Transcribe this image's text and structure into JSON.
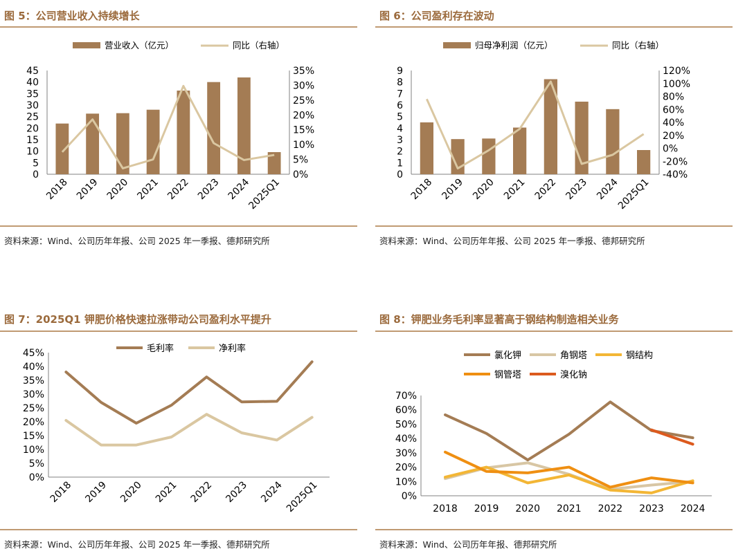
{
  "colors": {
    "title": "#9b6a3c",
    "rule": "#c09a72",
    "bar": "#a47c54",
    "line_light": "#dac7a1",
    "brown_line": "#a47c54",
    "angle_steel": "#d8c6a4",
    "steel_struct": "#f3b635",
    "steel_pipe": "#ef8f12",
    "bromide": "#dc5a1e"
  },
  "charts": [
    {
      "title": "图 5：公司营业收入持续增长",
      "source": "资料来源：Wind、公司历年年报、公司 2025 年一季报、德邦研究所",
      "chart_data": {
        "type": "bar",
        "categories": [
          "2018",
          "2019",
          "2020",
          "2021",
          "2022",
          "2023",
          "2024",
          "2025Q1"
        ],
        "bar_series": {
          "name": "营业收入（亿元）",
          "values": [
            22,
            26.3,
            26.5,
            28,
            36.3,
            40,
            42,
            9.6
          ]
        },
        "line_series": {
          "name": "同比（右轴）",
          "values": [
            7.5,
            18.5,
            2,
            5,
            29.8,
            10.5,
            4.8,
            6.5
          ]
        },
        "y_left": {
          "min": 0,
          "max": 45,
          "ticks": [
            "0",
            "5",
            "10",
            "15",
            "20",
            "25",
            "30",
            "35",
            "40",
            "45"
          ]
        },
        "y_right": {
          "min": 0,
          "max": 35,
          "ticks": [
            "0%",
            "5%",
            "10%",
            "15%",
            "20%",
            "25%",
            "30%",
            "35%"
          ]
        }
      }
    },
    {
      "title": "图 6：公司盈利存在波动",
      "source": "资料来源：Wind、公司历年年报、公司 2025 年一季报、德邦研究所",
      "chart_data": {
        "type": "bar",
        "categories": [
          "2018",
          "2019",
          "2020",
          "2021",
          "2022",
          "2023",
          "2024",
          "2025Q1"
        ],
        "bar_series": {
          "name": "归母净利润（亿元）",
          "values": [
            4.5,
            3.05,
            3.1,
            4.05,
            8.25,
            6.3,
            5.65,
            2.1
          ]
        },
        "line_series": {
          "name": "同比（右轴）",
          "values": [
            76,
            -31,
            -3,
            30,
            103,
            -24,
            -10,
            22
          ]
        },
        "y_left": {
          "min": 0,
          "max": 9,
          "ticks": [
            "0",
            "1",
            "2",
            "3",
            "4",
            "5",
            "6",
            "7",
            "8",
            "9"
          ]
        },
        "y_right": {
          "min": -40,
          "max": 120,
          "ticks": [
            "-40%",
            "-20%",
            "0%",
            "20%",
            "40%",
            "60%",
            "80%",
            "100%",
            "120%"
          ]
        }
      }
    },
    {
      "title": "图 7：2025Q1 钾肥价格快速拉涨带动公司盈利水平提升",
      "source": "资料来源：Wind、公司历年年报、公司 2025 年一季报、德邦研究所",
      "chart_data": {
        "type": "line",
        "categories": [
          "2018",
          "2019",
          "2020",
          "2021",
          "2022",
          "2023",
          "2024",
          "2025Q1"
        ],
        "series": [
          {
            "name": "毛利率",
            "values": [
              38,
              27,
              19.5,
              26,
              36.2,
              27.2,
              27.4,
              41.7
            ]
          },
          {
            "name": "净利率",
            "values": [
              20.5,
              11.6,
              11.6,
              14.5,
              22.7,
              16,
              13.4,
              21.6
            ]
          }
        ],
        "y": {
          "min": 0,
          "max": 45,
          "ticks": [
            "0%",
            "5%",
            "10%",
            "15%",
            "20%",
            "25%",
            "30%",
            "35%",
            "40%",
            "45%"
          ]
        }
      }
    },
    {
      "title": "图 8：钾肥业务毛利率显著高于钢结构制造相关业务",
      "source": "资料来源：Wind、公司历年年报、德邦研究所",
      "chart_data": {
        "type": "line",
        "categories": [
          "2018",
          "2019",
          "2020",
          "2021",
          "2022",
          "2023",
          "2024"
        ],
        "series": [
          {
            "name": "氯化钾",
            "values": [
              56.5,
              43.5,
              25,
              43,
              65.5,
              45.5,
              40.5
            ]
          },
          {
            "name": "角钢塔",
            "values": [
              12,
              19.5,
              23,
              15,
              4.5,
              7.5,
              10
            ]
          },
          {
            "name": "钢结构",
            "values": [
              13,
              20,
              9,
              14.5,
              4,
              2,
              10.5
            ]
          },
          {
            "name": "钢管塔",
            "values": [
              30.5,
              17,
              16,
              20,
              6,
              12.5,
              9
            ]
          },
          {
            "name": "溴化钠",
            "values": [
              null,
              null,
              null,
              null,
              null,
              46,
              36
            ]
          }
        ],
        "y": {
          "min": 0,
          "max": 70,
          "ticks": [
            "0%",
            "10%",
            "20%",
            "30%",
            "40%",
            "50%",
            "60%",
            "70%"
          ]
        }
      }
    }
  ]
}
